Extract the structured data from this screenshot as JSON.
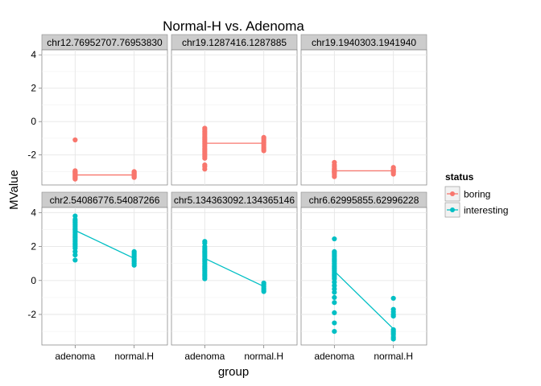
{
  "chart_data": {
    "type": "scatter",
    "title": "Normal-H vs. Adenoma",
    "xlabel": "group",
    "ylabel": "MValue",
    "categories": [
      "adenoma",
      "normal.H"
    ],
    "ylim": [
      -3.8,
      4.3
    ],
    "y_ticks": [
      -2,
      0,
      2,
      4
    ],
    "grid": true,
    "legend": {
      "title": "status",
      "position": "right",
      "entries": [
        {
          "label": "boring",
          "color": "#F8766D"
        },
        {
          "label": "interesting",
          "color": "#00BFC4"
        }
      ]
    },
    "panels": [
      {
        "label": "chr12.76952707.76953830",
        "status": "boring",
        "means": [
          -3.2,
          -3.2
        ],
        "points": {
          "adenoma": [
            -1.1,
            -2.95,
            -3.0,
            -3.05,
            -3.1,
            -3.15,
            -3.2,
            -3.25,
            -3.3,
            -3.35,
            -3.4,
            -3.45
          ],
          "normal.H": [
            -3.0,
            -3.05,
            -3.1,
            -3.15,
            -3.2,
            -3.25,
            -3.3,
            -3.35
          ]
        }
      },
      {
        "label": "chr19.1287416.1287885",
        "status": "boring",
        "means": [
          -1.3,
          -1.3
        ],
        "points": {
          "adenoma": [
            -0.4,
            -0.5,
            -0.6,
            -0.7,
            -0.8,
            -0.9,
            -1.0,
            -1.1,
            -1.2,
            -1.3,
            -1.4,
            -1.5,
            -1.6,
            -1.7,
            -1.8,
            -1.9,
            -2.0,
            -2.1,
            -2.2,
            -2.6,
            -2.7,
            -2.85
          ],
          "normal.H": [
            -0.95,
            -1.05,
            -1.15,
            -1.25,
            -1.35,
            -1.45,
            -1.55,
            -1.65,
            -1.75
          ]
        }
      },
      {
        "label": "chr19.1940303.1941940",
        "status": "boring",
        "means": [
          -2.95,
          -2.95
        ],
        "points": {
          "adenoma": [
            -2.45,
            -2.6,
            -2.7,
            -2.8,
            -2.85,
            -2.9,
            -2.95,
            -3.0,
            -3.05,
            -3.1,
            -3.2,
            -3.3
          ],
          "normal.H": [
            -2.75,
            -2.85,
            -2.9,
            -2.95,
            -3.0,
            -3.05,
            -3.15
          ]
        }
      },
      {
        "label": "chr2.54086776.54087266",
        "status": "interesting",
        "means": [
          2.95,
          1.3
        ],
        "points": {
          "adenoma": [
            3.8,
            3.6,
            3.5,
            3.4,
            3.3,
            3.2,
            3.1,
            3.0,
            2.9,
            2.8,
            2.7,
            2.6,
            2.5,
            2.4,
            2.3,
            2.2,
            2.1,
            2.0,
            1.9,
            1.7,
            1.5,
            1.2
          ],
          "normal.H": [
            1.7,
            1.6,
            1.5,
            1.4,
            1.3,
            1.2,
            1.1,
            1.0,
            0.9
          ]
        }
      },
      {
        "label": "chr5.134363092.134365146",
        "status": "interesting",
        "means": [
          1.3,
          -0.35
        ],
        "points": {
          "adenoma": [
            2.3,
            2.2,
            2.0,
            1.9,
            1.8,
            1.7,
            1.6,
            1.5,
            1.4,
            1.3,
            1.2,
            1.1,
            1.0,
            0.9,
            0.8,
            0.7,
            0.6,
            0.5,
            0.4,
            0.3,
            0.2,
            0.1
          ],
          "normal.H": [
            -0.15,
            -0.25,
            -0.35,
            -0.45,
            -0.55,
            -0.65
          ]
        }
      },
      {
        "label": "chr6.62995855.62996228",
        "status": "interesting",
        "means": [
          0.55,
          -2.85
        ],
        "points": {
          "adenoma": [
            2.45,
            1.7,
            1.6,
            1.5,
            1.4,
            1.3,
            1.2,
            1.1,
            1.0,
            0.9,
            0.8,
            0.7,
            0.6,
            0.5,
            0.4,
            0.3,
            0.2,
            0.1,
            -0.1,
            -0.3,
            -0.5,
            -0.7,
            -1.0,
            -1.3,
            -1.9,
            -2.5,
            -3.0
          ],
          "normal.H": [
            -1.05,
            -1.7,
            -1.85,
            -2.0,
            -2.1,
            -2.9,
            -3.0,
            -3.1,
            -3.2,
            -3.35,
            -3.45
          ]
        }
      }
    ]
  }
}
